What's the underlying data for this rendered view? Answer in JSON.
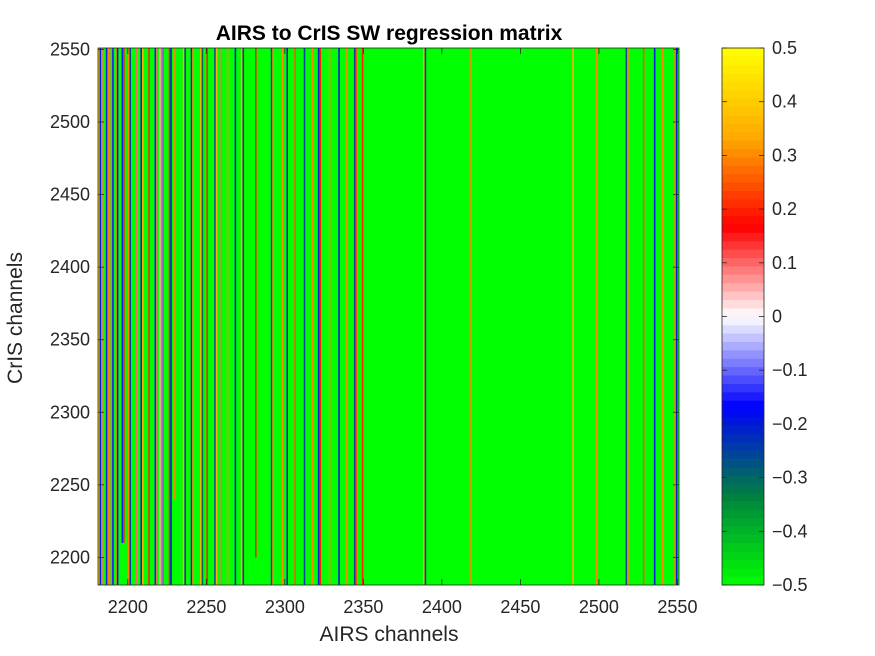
{
  "chart_data": {
    "type": "heatmap",
    "title": "AIRS to CrIS SW regression matrix",
    "xlabel": "AIRS channels",
    "ylabel": "CrIS channels",
    "xlim": [
      2181,
      2551
    ],
    "ylim": [
      2181,
      2551
    ],
    "xticks": [
      2200,
      2250,
      2300,
      2350,
      2400,
      2450,
      2500,
      2550
    ],
    "xtick_labels": [
      "2200",
      "2250",
      "2300",
      "2350",
      "2400",
      "2450",
      "2500",
      "2550"
    ],
    "yticks": [
      2200,
      2250,
      2300,
      2350,
      2400,
      2450,
      2500,
      2550
    ],
    "ytick_labels": [
      "2200",
      "2250",
      "2300",
      "2350",
      "2400",
      "2450",
      "2500",
      "2550"
    ],
    "color_range": [
      -0.5,
      0.5
    ],
    "colorbar_ticks": [
      -0.5,
      -0.4,
      -0.3,
      -0.2,
      -0.1,
      0,
      0.1,
      0.2,
      0.3,
      0.4,
      0.5
    ],
    "colorbar_tick_labels": [
      "−0.5",
      "−0.4",
      "−0.3",
      "−0.2",
      "−0.1",
      "0",
      "0.1",
      "0.2",
      "0.3",
      "0.4",
      "0.5"
    ],
    "colormap": [
      "#00ff00",
      "#008040",
      "#0000ff",
      "#ffffff",
      "#ff0000",
      "#ffaa00",
      "#ffff00"
    ],
    "background_value": -0.5,
    "grid": false,
    "features": [
      {
        "x": 2181,
        "width": 3,
        "ystart": 2181,
        "values": [
          0.4,
          -0.2,
          0.1
        ]
      },
      {
        "x": 2186,
        "width": 2,
        "ystart": 2181,
        "values": [
          -0.2,
          0.3
        ]
      },
      {
        "x": 2189,
        "width": 2,
        "ystart": 2181,
        "values": [
          0.1,
          -0.15
        ]
      },
      {
        "x": 2192,
        "width": 2,
        "ystart": 2181,
        "values": [
          0.3,
          -0.2
        ]
      },
      {
        "x": 2196,
        "width": 2,
        "ystart": 2210,
        "values": [
          -0.15,
          0.2
        ]
      },
      {
        "x": 2200,
        "width": 2,
        "ystart": 2181,
        "values": [
          0.3,
          -0.25
        ]
      },
      {
        "x": 2205,
        "width": 1,
        "ystart": 2181,
        "values": [
          0.1
        ]
      },
      {
        "x": 2208,
        "width": 2,
        "ystart": 2181,
        "values": [
          -0.2,
          0.35
        ]
      },
      {
        "x": 2213,
        "width": 1,
        "ystart": 2181,
        "values": [
          0.2
        ]
      },
      {
        "x": 2217,
        "width": 2,
        "ystart": 2181,
        "values": [
          -0.15,
          0.1
        ]
      },
      {
        "x": 2220,
        "width": 3,
        "ystart": 2181,
        "values": [
          0.05,
          0.1,
          -0.1
        ]
      },
      {
        "x": 2226,
        "width": 2,
        "ystart": 2181,
        "values": [
          0.2,
          -0.2
        ]
      },
      {
        "x": 2229,
        "width": 1,
        "ystart": 2240,
        "values": [
          0.3
        ]
      },
      {
        "x": 2235,
        "width": 2,
        "ystart": 2181,
        "values": [
          0.35,
          -0.25
        ]
      },
      {
        "x": 2240,
        "width": 2,
        "ystart": 2181,
        "values": [
          -0.2,
          0.3
        ]
      },
      {
        "x": 2246,
        "width": 2,
        "ystart": 2181,
        "values": [
          0.35,
          -0.3
        ]
      },
      {
        "x": 2250,
        "width": 1,
        "ystart": 2181,
        "values": [
          0.2
        ]
      },
      {
        "x": 2255,
        "width": 2,
        "ystart": 2181,
        "values": [
          -0.25,
          0.35
        ]
      },
      {
        "x": 2259,
        "width": 1,
        "ystart": 2181,
        "values": [
          0.1
        ]
      },
      {
        "x": 2263,
        "width": 1,
        "ystart": 2181,
        "values": [
          0.3
        ]
      },
      {
        "x": 2268,
        "width": 1,
        "ystart": 2181,
        "values": [
          -0.2
        ]
      },
      {
        "x": 2272,
        "width": 2,
        "ystart": 2181,
        "values": [
          0.35,
          -0.25
        ]
      },
      {
        "x": 2281,
        "width": 1,
        "ystart": 2200,
        "values": [
          0.2
        ]
      },
      {
        "x": 2291,
        "width": 2,
        "ystart": 2181,
        "values": [
          -0.25,
          0.3
        ]
      },
      {
        "x": 2298,
        "width": 1,
        "ystart": 2181,
        "values": [
          0.3
        ]
      },
      {
        "x": 2301,
        "width": 1,
        "ystart": 2181,
        "values": [
          -0.2
        ]
      },
      {
        "x": 2306,
        "width": 1,
        "ystart": 2181,
        "values": [
          0.25
        ]
      },
      {
        "x": 2312,
        "width": 1,
        "ystart": 2181,
        "values": [
          -0.25
        ]
      },
      {
        "x": 2317,
        "width": 1,
        "ystart": 2181,
        "values": [
          0.3
        ]
      },
      {
        "x": 2321,
        "width": 2,
        "ystart": 2181,
        "values": [
          -0.2,
          0.2
        ]
      },
      {
        "x": 2328,
        "width": 1,
        "ystart": 2181,
        "values": [
          0.3
        ]
      },
      {
        "x": 2334,
        "width": 1,
        "ystart": 2181,
        "values": [
          -0.2
        ]
      },
      {
        "x": 2339,
        "width": 1,
        "ystart": 2181,
        "values": [
          0.3
        ]
      },
      {
        "x": 2344,
        "width": 2,
        "ystart": 2181,
        "values": [
          -0.25,
          0.25
        ]
      },
      {
        "x": 2349,
        "width": 1,
        "ystart": 2181,
        "values": [
          0.2
        ]
      },
      {
        "x": 2388,
        "width": 2,
        "ystart": 2181,
        "values": [
          0.35,
          -0.25
        ]
      },
      {
        "x": 2418,
        "width": 1,
        "ystart": 2181,
        "values": [
          0.3
        ]
      },
      {
        "x": 2483,
        "width": 1,
        "ystart": 2181,
        "values": [
          0.35
        ]
      },
      {
        "x": 2498,
        "width": 1,
        "ystart": 2181,
        "values": [
          0.3
        ]
      },
      {
        "x": 2517,
        "width": 2,
        "ystart": 2181,
        "values": [
          -0.25,
          0.3
        ]
      },
      {
        "x": 2528,
        "width": 1,
        "ystart": 2181,
        "values": [
          0.25
        ]
      },
      {
        "x": 2535,
        "width": 1,
        "ystart": 2181,
        "values": [
          -0.2
        ]
      },
      {
        "x": 2540,
        "width": 1,
        "ystart": 2181,
        "values": [
          0.3
        ]
      },
      {
        "x": 2548,
        "width": 2,
        "ystart": 2181,
        "values": [
          0.3,
          -0.2
        ]
      }
    ]
  }
}
